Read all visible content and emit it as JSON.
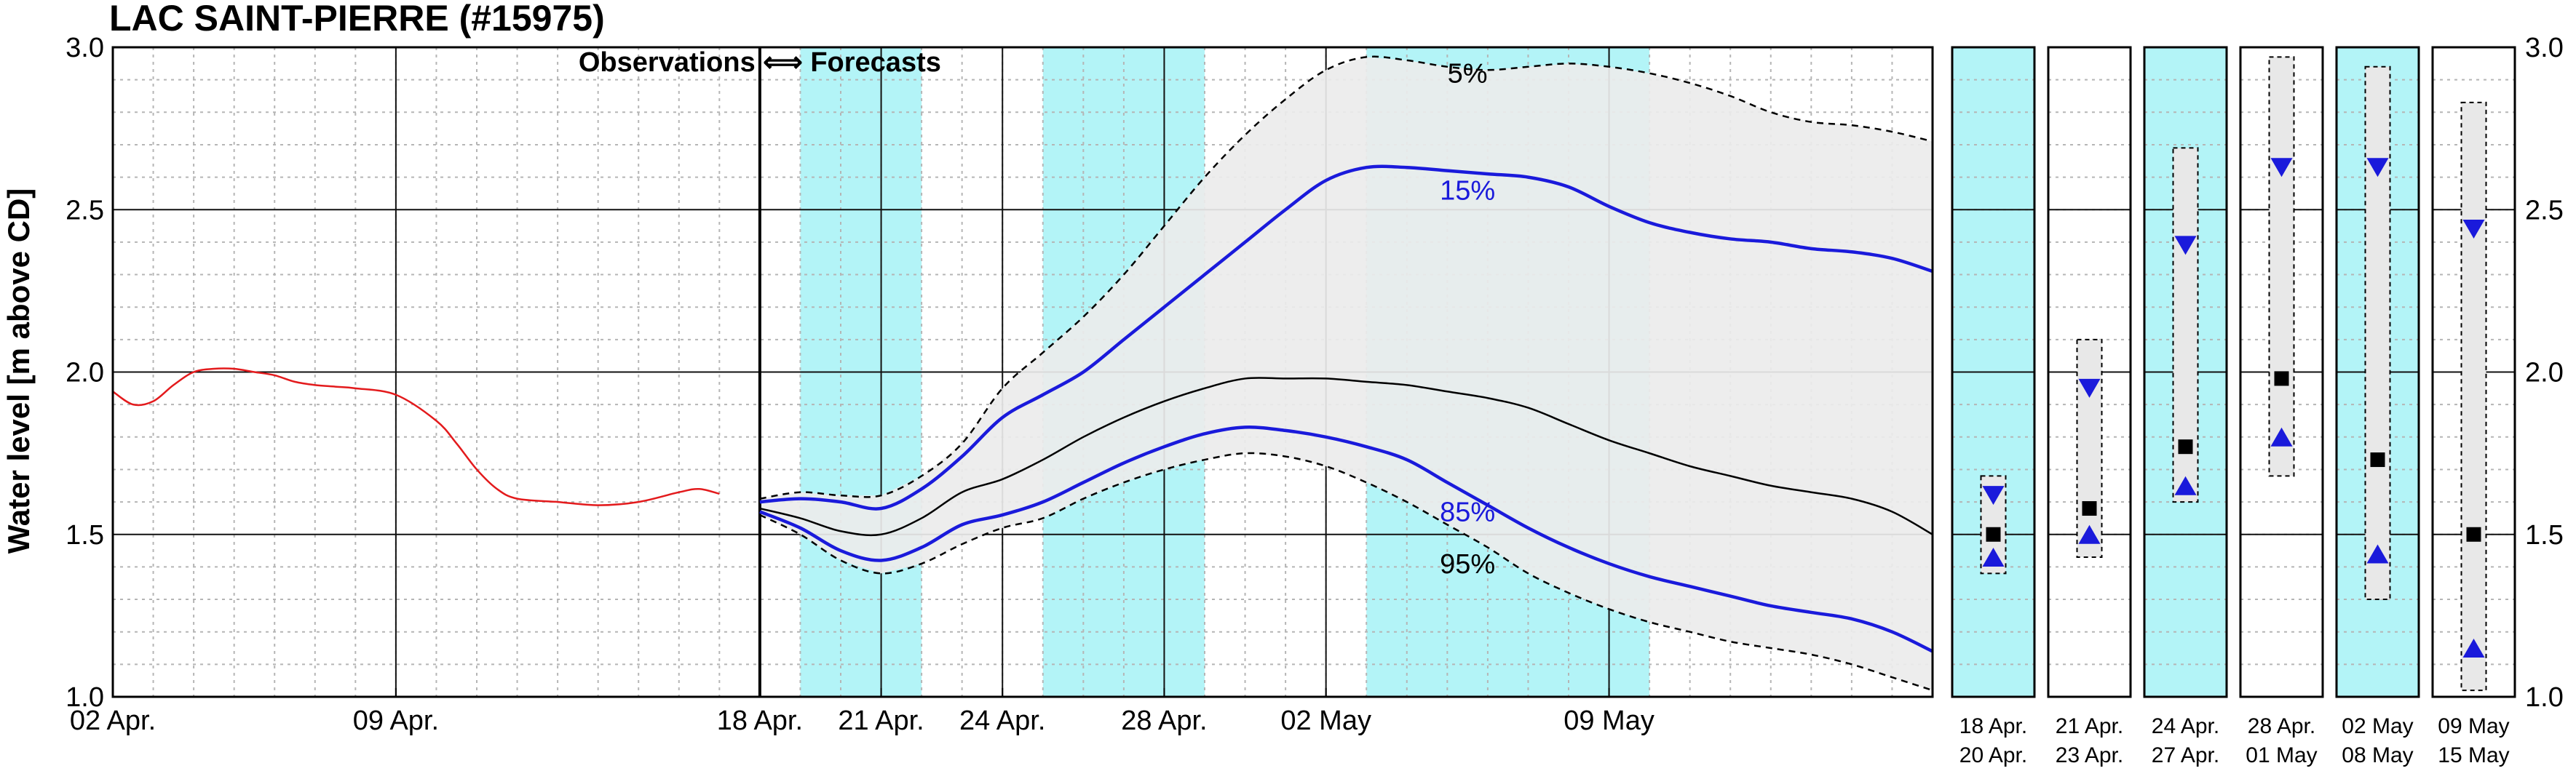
{
  "chart_data": {
    "type": "line",
    "title": "LAC SAINT-PIERRE (#15975)",
    "ylabel": "Water level [m above CD]",
    "ylim": [
      1.0,
      3.0
    ],
    "yticks": [
      "1.0",
      "1.5",
      "2.0",
      "2.5",
      "3.0"
    ],
    "x_start": "02 Apr.",
    "x_days": 45,
    "xtick_days": [
      0,
      7,
      16,
      19,
      22,
      26,
      30,
      37
    ],
    "xtick_labels": [
      "02 Apr.",
      "09 Apr.",
      "18 Apr.",
      "21 Apr.",
      "24 Apr.",
      "28 Apr.",
      "02 May",
      "09 May"
    ],
    "grid": true,
    "annotation": "Observations ⟺ Forecasts",
    "forecast_start_day": 16,
    "shaded_periods": [
      [
        17,
        20
      ],
      [
        23,
        27
      ],
      [
        31,
        38
      ]
    ],
    "colors": {
      "observed": "#e31a1c",
      "band": "#ececec",
      "shade": "#b3f4f7",
      "p15_85": "#1a1adb",
      "median": "#000000"
    },
    "observed": {
      "x": [
        0,
        0.5,
        1,
        1.5,
        2,
        2.5,
        3,
        3.5,
        4,
        4.5,
        5,
        5.5,
        6,
        7,
        8,
        8.5,
        9,
        9.5,
        10,
        11,
        12,
        13,
        14,
        14.5,
        15
      ],
      "y": [
        1.94,
        1.9,
        1.91,
        1.96,
        2.0,
        2.01,
        2.01,
        2.0,
        1.99,
        1.97,
        1.96,
        1.955,
        1.95,
        1.93,
        1.85,
        1.78,
        1.7,
        1.64,
        1.61,
        1.6,
        1.59,
        1.6,
        1.63,
        1.64,
        1.625
      ]
    },
    "series": [
      {
        "name": "5%",
        "x": [
          16,
          17,
          18,
          19,
          20,
          21,
          22,
          23,
          24,
          25,
          26,
          27,
          28,
          29,
          30,
          31,
          32,
          33,
          34,
          35,
          36,
          37,
          38,
          39,
          40,
          41,
          42,
          43,
          44,
          45
        ],
        "y": [
          1.61,
          1.63,
          1.62,
          1.62,
          1.68,
          1.78,
          1.95,
          2.06,
          2.17,
          2.3,
          2.45,
          2.6,
          2.73,
          2.84,
          2.93,
          2.97,
          2.96,
          2.94,
          2.93,
          2.94,
          2.95,
          2.94,
          2.92,
          2.89,
          2.85,
          2.8,
          2.77,
          2.76,
          2.74,
          2.71
        ]
      },
      {
        "name": "15%",
        "x": [
          16,
          17,
          18,
          19,
          20,
          21,
          22,
          23,
          24,
          25,
          26,
          27,
          28,
          29,
          30,
          31,
          32,
          33,
          34,
          35,
          36,
          37,
          38,
          39,
          40,
          41,
          42,
          43,
          44,
          45
        ],
        "y": [
          1.6,
          1.61,
          1.6,
          1.58,
          1.64,
          1.74,
          1.86,
          1.93,
          2.0,
          2.1,
          2.2,
          2.3,
          2.4,
          2.5,
          2.59,
          2.63,
          2.63,
          2.62,
          2.61,
          2.6,
          2.57,
          2.51,
          2.46,
          2.43,
          2.41,
          2.4,
          2.38,
          2.37,
          2.35,
          2.31
        ]
      },
      {
        "name": "median",
        "x": [
          16,
          17,
          18,
          19,
          20,
          21,
          22,
          23,
          24,
          25,
          26,
          27,
          28,
          29,
          30,
          31,
          32,
          33,
          34,
          35,
          36,
          37,
          38,
          39,
          40,
          41,
          42,
          43,
          44,
          45
        ],
        "y": [
          1.58,
          1.55,
          1.51,
          1.5,
          1.55,
          1.63,
          1.67,
          1.73,
          1.8,
          1.86,
          1.91,
          1.95,
          1.98,
          1.98,
          1.98,
          1.97,
          1.96,
          1.94,
          1.92,
          1.89,
          1.84,
          1.79,
          1.75,
          1.71,
          1.68,
          1.65,
          1.63,
          1.61,
          1.57,
          1.5
        ]
      },
      {
        "name": "85%",
        "x": [
          16,
          17,
          18,
          19,
          20,
          21,
          22,
          23,
          24,
          25,
          26,
          27,
          28,
          29,
          30,
          31,
          32,
          33,
          34,
          35,
          36,
          37,
          38,
          39,
          40,
          41,
          42,
          43,
          44,
          45
        ],
        "y": [
          1.57,
          1.52,
          1.45,
          1.42,
          1.46,
          1.53,
          1.56,
          1.6,
          1.66,
          1.72,
          1.77,
          1.81,
          1.83,
          1.82,
          1.8,
          1.77,
          1.73,
          1.66,
          1.59,
          1.52,
          1.46,
          1.41,
          1.37,
          1.34,
          1.31,
          1.28,
          1.26,
          1.24,
          1.2,
          1.14
        ]
      },
      {
        "name": "95%",
        "x": [
          16,
          17,
          18,
          19,
          20,
          21,
          22,
          23,
          24,
          25,
          26,
          27,
          28,
          29,
          30,
          31,
          32,
          33,
          34,
          35,
          36,
          37,
          38,
          39,
          40,
          41,
          42,
          43,
          44,
          45
        ],
        "y": [
          1.56,
          1.5,
          1.42,
          1.38,
          1.41,
          1.47,
          1.52,
          1.55,
          1.61,
          1.66,
          1.7,
          1.73,
          1.75,
          1.74,
          1.71,
          1.66,
          1.6,
          1.53,
          1.46,
          1.38,
          1.32,
          1.27,
          1.23,
          1.2,
          1.17,
          1.15,
          1.13,
          1.1,
          1.06,
          1.02
        ]
      }
    ],
    "percentile_labels": [
      {
        "text": "5%",
        "x": 33.5,
        "y": 2.92,
        "color": "#000000"
      },
      {
        "text": "15%",
        "x": 33.5,
        "y": 2.56,
        "color": "#1a1adb"
      },
      {
        "text": "85%",
        "x": 33.5,
        "y": 1.57,
        "color": "#1a1adb"
      },
      {
        "text": "95%",
        "x": 33.5,
        "y": 1.41,
        "color": "#000000"
      }
    ],
    "period_panels": [
      {
        "label_top": "18 Apr.",
        "label_bottom": "20 Apr.",
        "shaded": true,
        "box": [
          1.38,
          1.68
        ],
        "median": 1.5,
        "p15": 1.62,
        "p85": 1.43
      },
      {
        "label_top": "21 Apr.",
        "label_bottom": "23 Apr.",
        "shaded": false,
        "box": [
          1.43,
          2.1
        ],
        "median": 1.58,
        "p15": 1.95,
        "p85": 1.5
      },
      {
        "label_top": "24 Apr.",
        "label_bottom": "27 Apr.",
        "shaded": true,
        "box": [
          1.6,
          2.69
        ],
        "median": 1.77,
        "p15": 2.39,
        "p85": 1.65
      },
      {
        "label_top": "28 Apr.",
        "label_bottom": "01 May",
        "shaded": false,
        "box": [
          1.68,
          2.97
        ],
        "median": 1.98,
        "p15": 2.63,
        "p85": 1.8
      },
      {
        "label_top": "02 May",
        "label_bottom": "08 May",
        "shaded": true,
        "box": [
          1.3,
          2.94
        ],
        "median": 1.73,
        "p15": 2.63,
        "p85": 1.44
      },
      {
        "label_top": "09 May",
        "label_bottom": "15 May",
        "shaded": false,
        "box": [
          1.02,
          2.83
        ],
        "median": 1.5,
        "p15": 2.44,
        "p85": 1.15
      }
    ]
  }
}
